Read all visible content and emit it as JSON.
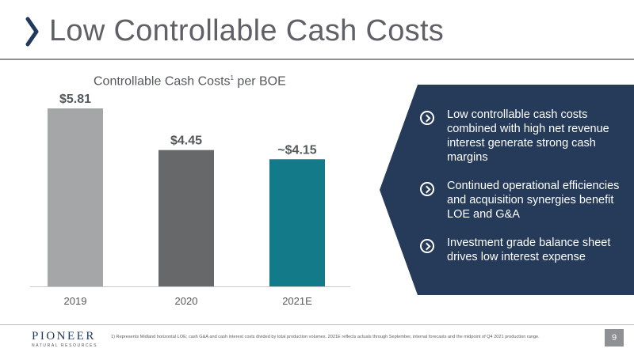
{
  "slide": {
    "title": "Low Controllable Cash Costs",
    "page_number": "9"
  },
  "chart_title": {
    "text": "Controllable Cash Costs",
    "superscript": "1",
    "suffix": " per BOE"
  },
  "chart_data": {
    "type": "bar",
    "title": "Controllable Cash Costs¹ per BOE",
    "categories": [
      "2019",
      "2020",
      "2021E"
    ],
    "values": [
      5.81,
      4.45,
      4.15
    ],
    "value_labels": [
      "$5.81",
      "$4.45",
      "~$4.15"
    ],
    "colors": [
      "#a5a6a8",
      "#67686a",
      "#137a8a"
    ],
    "ylim": [
      0,
      5.81
    ],
    "grid": false,
    "legend": "none"
  },
  "panel": {
    "color": "#253b59",
    "bullets": [
      {
        "icon": "chevron-circle-icon",
        "text": "Low controllable cash costs combined with high net revenue interest generate strong cash margins"
      },
      {
        "icon": "chevron-circle-icon",
        "text": "Continued operational efficiencies and acquisition synergies benefit LOE and G&A"
      },
      {
        "icon": "chevron-circle-icon",
        "text": "Investment grade balance sheet drives low interest expense"
      }
    ]
  },
  "footer": {
    "logo_main": "PIONEER",
    "logo_sub": "NATURAL RESOURCES",
    "footnote": "1) Represents Midland horizontal LOE; cash G&A and cash interest costs divided by total production volumes. 2021E reflects actuals through September, internal forecasts and the midpoint of Q4 2021 production range."
  }
}
